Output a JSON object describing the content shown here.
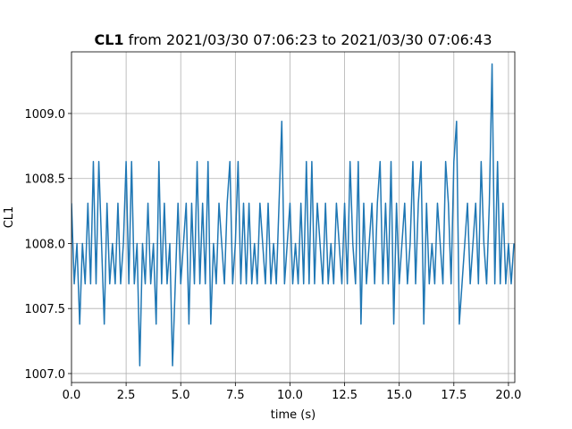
{
  "chart_data": {
    "type": "line",
    "title_bold": "CL1",
    "title": "from 2021/03/30 07:06:23 to 2021/03/30 07:06:43",
    "x_label": "time (s)",
    "y_label": "CL1",
    "xlim": [
      0,
      20.29
    ],
    "ylim": [
      1006.931,
      1009.474
    ],
    "xticks": [
      {
        "value": 0,
        "label": "0.0"
      },
      {
        "value": 2.5,
        "label": "2.5"
      },
      {
        "value": 5,
        "label": "5.0"
      },
      {
        "value": 7.5,
        "label": "7.5"
      },
      {
        "value": 10,
        "label": "10.0"
      },
      {
        "value": 12.5,
        "label": "12.5"
      },
      {
        "value": 15,
        "label": "15.0"
      },
      {
        "value": 17.5,
        "label": "17.5"
      },
      {
        "value": 20,
        "label": "20.0"
      }
    ],
    "yticks": [
      {
        "value": 1007,
        "label": "1007.0"
      },
      {
        "value": 1007.5,
        "label": "1007.5"
      },
      {
        "value": 1008,
        "label": "1008.0"
      },
      {
        "value": 1008.5,
        "label": "1008.5"
      },
      {
        "value": 1009,
        "label": "1009.0"
      }
    ],
    "grid": true,
    "x": [
      0,
      0.125,
      0.25,
      0.375,
      0.5,
      0.625,
      0.75,
      0.875,
      1,
      1.125,
      1.25,
      1.375,
      1.5,
      1.625,
      1.75,
      1.875,
      2,
      2.125,
      2.25,
      2.375,
      2.5,
      2.625,
      2.75,
      2.875,
      3,
      3.125,
      3.25,
      3.375,
      3.5,
      3.625,
      3.75,
      3.875,
      4,
      4.125,
      4.25,
      4.375,
      4.5,
      4.625,
      4.75,
      4.875,
      5,
      5.125,
      5.25,
      5.375,
      5.5,
      5.625,
      5.75,
      5.875,
      6,
      6.125,
      6.25,
      6.375,
      6.5,
      6.625,
      6.75,
      6.875,
      7,
      7.125,
      7.25,
      7.375,
      7.5,
      7.625,
      7.75,
      7.875,
      8,
      8.125,
      8.25,
      8.375,
      8.5,
      8.625,
      8.75,
      8.875,
      9,
      9.125,
      9.25,
      9.375,
      9.5,
      9.625,
      9.75,
      9.875,
      10,
      10.125,
      10.25,
      10.375,
      10.5,
      10.625,
      10.75,
      10.875,
      11,
      11.125,
      11.25,
      11.375,
      11.5,
      11.625,
      11.75,
      11.875,
      12,
      12.125,
      12.25,
      12.375,
      12.5,
      12.625,
      12.75,
      12.875,
      13,
      13.125,
      13.25,
      13.375,
      13.5,
      13.625,
      13.75,
      13.875,
      14,
      14.125,
      14.25,
      14.375,
      14.5,
      14.625,
      14.75,
      14.875,
      15,
      15.125,
      15.25,
      15.375,
      15.5,
      15.625,
      15.75,
      15.875,
      16,
      16.125,
      16.25,
      16.375,
      16.5,
      16.625,
      16.75,
      16.875,
      17,
      17.125,
      17.25,
      17.375,
      17.5,
      17.625,
      17.75,
      17.875,
      18,
      18.125,
      18.25,
      18.375,
      18.5,
      18.625,
      18.75,
      18.875,
      19,
      19.125,
      19.25,
      19.375,
      19.5,
      19.625,
      19.75,
      19.875,
      20,
      20.125,
      20.25
    ],
    "series": [
      {
        "name": "CL1",
        "color": "#1f77b4",
        "values": [
          1008.31,
          1007.69,
          1008.0,
          1007.38,
          1008.0,
          1007.69,
          1008.31,
          1007.69,
          1008.63,
          1007.69,
          1008.63,
          1008.0,
          1007.38,
          1008.31,
          1007.69,
          1008.0,
          1007.69,
          1008.31,
          1007.69,
          1008.0,
          1008.63,
          1007.69,
          1008.63,
          1007.69,
          1008.0,
          1007.06,
          1008.0,
          1007.69,
          1008.31,
          1007.69,
          1008.0,
          1007.38,
          1008.63,
          1007.69,
          1008.31,
          1007.69,
          1008.0,
          1007.06,
          1007.69,
          1008.31,
          1007.69,
          1008.0,
          1008.31,
          1007.38,
          1008.31,
          1007.69,
          1008.63,
          1007.69,
          1008.31,
          1007.69,
          1008.63,
          1007.38,
          1008.0,
          1007.69,
          1008.31,
          1008.0,
          1007.69,
          1008.31,
          1008.63,
          1007.69,
          1008.0,
          1008.63,
          1007.69,
          1008.31,
          1007.69,
          1008.31,
          1007.69,
          1008.0,
          1007.69,
          1008.31,
          1008.0,
          1007.69,
          1008.31,
          1007.69,
          1008.0,
          1007.69,
          1008.31,
          1008.94,
          1007.69,
          1008.0,
          1008.31,
          1007.69,
          1008.0,
          1007.69,
          1008.31,
          1007.69,
          1008.63,
          1007.69,
          1008.63,
          1007.69,
          1008.31,
          1008.0,
          1007.69,
          1008.31,
          1007.69,
          1008.0,
          1007.69,
          1008.31,
          1008.0,
          1007.69,
          1008.31,
          1007.69,
          1008.63,
          1008.0,
          1007.69,
          1008.63,
          1007.38,
          1008.31,
          1007.69,
          1008.0,
          1008.31,
          1007.69,
          1008.31,
          1008.63,
          1007.69,
          1008.31,
          1007.69,
          1008.63,
          1007.38,
          1008.31,
          1007.69,
          1008.0,
          1008.31,
          1007.69,
          1008.0,
          1008.63,
          1007.69,
          1008.31,
          1008.63,
          1007.38,
          1008.31,
          1007.69,
          1008.0,
          1007.69,
          1008.31,
          1008.0,
          1007.69,
          1008.63,
          1008.31,
          1007.69,
          1008.63,
          1008.94,
          1007.38,
          1007.69,
          1008.0,
          1008.31,
          1007.69,
          1008.0,
          1008.31,
          1007.69,
          1008.63,
          1008.0,
          1007.69,
          1008.31,
          1009.38,
          1007.69,
          1008.63,
          1007.69,
          1008.31,
          1007.69,
          1008.0,
          1007.69,
          1008.0
        ]
      }
    ]
  }
}
